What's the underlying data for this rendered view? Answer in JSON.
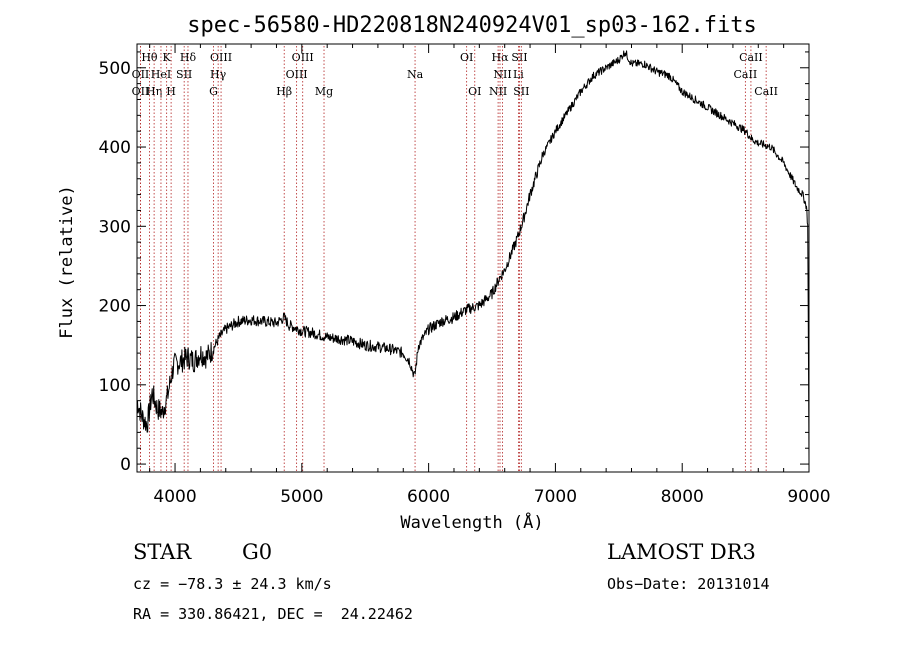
{
  "chart_data": {
    "type": "line",
    "title": "spec-56580-HD220818N240924V01_sp03-162.fits",
    "xlabel": "Wavelength (Å)",
    "ylabel": "Flux (relative)",
    "xlim": [
      3700,
      9000
    ],
    "ylim": [
      -10,
      530
    ],
    "x_ticks": [
      4000,
      5000,
      6000,
      7000,
      8000,
      9000
    ],
    "y_ticks": [
      0,
      100,
      200,
      300,
      400,
      500
    ],
    "series": [
      {
        "name": "flux",
        "x": [
          3700,
          3740,
          3780,
          3820,
          3860,
          3900,
          3940,
          3970,
          3990,
          4050,
          4100,
          4150,
          4200,
          4250,
          4300,
          4350,
          4400,
          4500,
          4600,
          4700,
          4800,
          4860,
          4900,
          4950,
          5000,
          5100,
          5200,
          5300,
          5400,
          5500,
          5600,
          5700,
          5800,
          5850,
          5890,
          5920,
          6000,
          6100,
          6200,
          6300,
          6400,
          6500,
          6560,
          6600,
          6650,
          6700,
          6750,
          6800,
          6850,
          6900,
          6950,
          7000,
          7100,
          7200,
          7300,
          7400,
          7500,
          7550,
          7600,
          7700,
          7800,
          7900,
          8000,
          8100,
          8200,
          8300,
          8400,
          8500,
          8550,
          8600,
          8700,
          8800,
          8850,
          8900,
          8950,
          8980,
          8990,
          9000
        ],
        "y": [
          80,
          60,
          50,
          90,
          70,
          65,
          85,
          110,
          125,
          130,
          135,
          130,
          140,
          135,
          145,
          160,
          170,
          180,
          182,
          180,
          178,
          185,
          175,
          172,
          168,
          165,
          160,
          158,
          155,
          150,
          148,
          145,
          140,
          130,
          110,
          150,
          170,
          180,
          185,
          195,
          200,
          215,
          235,
          245,
          265,
          285,
          310,
          340,
          365,
          390,
          405,
          420,
          445,
          470,
          490,
          500,
          510,
          520,
          505,
          505,
          495,
          490,
          470,
          460,
          450,
          440,
          430,
          420,
          410,
          405,
          400,
          380,
          365,
          350,
          340,
          325,
          300,
          0
        ]
      }
    ],
    "spectral_lines": [
      {
        "label": "Hθ",
        "x": 3798,
        "row": 1
      },
      {
        "label": "OII",
        "x": 3727,
        "row": 2
      },
      {
        "label": "OII",
        "x": 3727,
        "row": 3
      },
      {
        "label": "Hη",
        "x": 3835,
        "row": 3
      },
      {
        "label": "HeI",
        "x": 3889,
        "row": 2
      },
      {
        "label": "K",
        "x": 3934,
        "row": 1
      },
      {
        "label": "H",
        "x": 3969,
        "row": 3
      },
      {
        "label": "Hδ",
        "x": 4102,
        "row": 1
      },
      {
        "label": "SII",
        "x": 4072,
        "row": 2
      },
      {
        "label": "OIII",
        "x": 4363,
        "row": 1
      },
      {
        "label": "Hγ",
        "x": 4340,
        "row": 2
      },
      {
        "label": "G",
        "x": 4304,
        "row": 3
      },
      {
        "label": "OIII",
        "x": 5007,
        "row": 1
      },
      {
        "label": "OIII",
        "x": 4959,
        "row": 2
      },
      {
        "label": "Hβ",
        "x": 4861,
        "row": 3
      },
      {
        "label": "Mg",
        "x": 5175,
        "row": 3
      },
      {
        "label": "Na",
        "x": 5893,
        "row": 2
      },
      {
        "label": "OI",
        "x": 6300,
        "row": 1
      },
      {
        "label": "OI",
        "x": 6364,
        "row": 3
      },
      {
        "label": "Hα",
        "x": 6563,
        "row": 1
      },
      {
        "label": "SII",
        "x": 6717,
        "row": 1
      },
      {
        "label": "NII",
        "x": 6583,
        "row": 2
      },
      {
        "label": "Li",
        "x": 6708,
        "row": 2
      },
      {
        "label": "NII",
        "x": 6548,
        "row": 3
      },
      {
        "label": "SII",
        "x": 6731,
        "row": 3
      },
      {
        "label": "CaII",
        "x": 8542,
        "row": 1
      },
      {
        "label": "CaII",
        "x": 8498,
        "row": 2
      },
      {
        "label": "CaII",
        "x": 8662,
        "row": 3
      }
    ]
  },
  "info": {
    "object_type": "STAR",
    "subclass": "G0",
    "survey": "LAMOST DR3",
    "redshift_line": "cz = −78.3 ± 24.3 km/s",
    "obs_date_line": "Obs−Date: 20131014",
    "coords_line": "RA = 330.86421, DEC =  24.22462"
  },
  "colors": {
    "line_marker": "#b22222",
    "spectrum": "#000000",
    "axis": "#000000"
  }
}
